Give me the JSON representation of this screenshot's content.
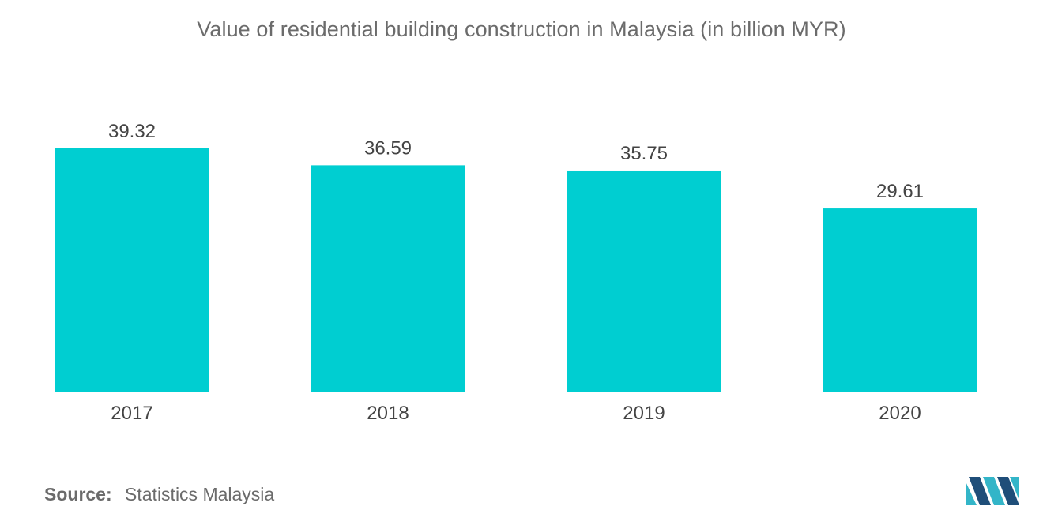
{
  "chart_data": {
    "type": "bar",
    "title": "Value of residential building construction  in Malaysia (in billion MYR)",
    "categories": [
      "2017",
      "2018",
      "2019",
      "2020"
    ],
    "values": [
      39.32,
      36.59,
      35.75,
      29.61
    ],
    "value_labels": [
      "39.32",
      "36.59",
      "35.75",
      "29.61"
    ],
    "ylim": [
      0,
      39.32
    ],
    "grid": false,
    "legend": "none",
    "bar_color": "#00ced1"
  },
  "source": {
    "label": "Source:",
    "text": "Statistics Malaysia"
  },
  "colors": {
    "title": "#6b6b6b",
    "label": "#444444",
    "logo_dark": "#1f4e79",
    "logo_light": "#33b5c8"
  },
  "logo_icon": "mordor-intelligence-logo-icon"
}
